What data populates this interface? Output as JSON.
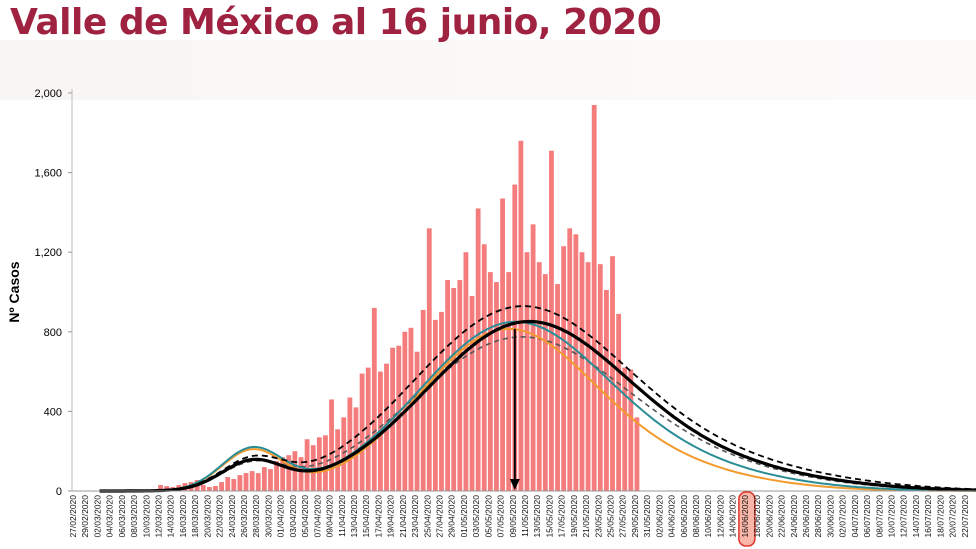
{
  "header": {
    "title": "Valle de México al 16 junio, 2020"
  },
  "chart_data": {
    "type": "bar",
    "title": "Valle de México al 16 junio, 2020",
    "ylabel": "Nº Casos",
    "xlabel": "",
    "ylim": [
      0,
      2000
    ],
    "y_ticks": [
      "0",
      "400",
      "800",
      "1,200",
      "1,600",
      "2,000"
    ],
    "y_tick_values": [
      0,
      400,
      800,
      1200,
      1600,
      2000
    ],
    "x_labels": [
      "27/02/2020",
      "29/02/2020",
      "02/03/2020",
      "04/03/2020",
      "06/03/2020",
      "08/03/2020",
      "10/03/2020",
      "12/03/2020",
      "14/03/2020",
      "16/03/2020",
      "18/03/2020",
      "20/03/2020",
      "22/03/2020",
      "24/03/2020",
      "26/03/2020",
      "28/03/2020",
      "30/03/2020",
      "01/04/2020",
      "03/04/2020",
      "05/04/2020",
      "07/04/2020",
      "09/04/2020",
      "11/04/2020",
      "13/04/2020",
      "15/04/2020",
      "17/04/2020",
      "19/04/2020",
      "21/04/2020",
      "23/04/2020",
      "25/04/2020",
      "27/04/2020",
      "29/04/2020",
      "01/05/2020",
      "03/05/2020",
      "05/05/2020",
      "07/05/2020",
      "09/05/2020",
      "11/05/2020",
      "13/05/2020",
      "15/05/2020",
      "17/05/2020",
      "19/05/2020",
      "21/05/2020",
      "23/05/2020",
      "25/05/2020",
      "27/05/2020",
      "29/05/2020",
      "31/05/2020",
      "02/06/2020",
      "04/06/2020",
      "06/06/2020",
      "08/06/2020",
      "10/06/2020",
      "12/06/2020",
      "14/06/2020",
      "16/06/2020",
      "18/06/2020",
      "20/06/2020",
      "22/06/2020",
      "24/06/2020",
      "26/06/2020",
      "28/06/2020",
      "30/06/2020",
      "02/07/2020",
      "04/07/2020",
      "06/07/2020",
      "08/07/2020",
      "10/07/2020",
      "12/07/2020",
      "14/07/2020",
      "16/07/2020",
      "18/07/2020",
      "20/07/2020",
      "22/07/2020"
    ],
    "highlighted_label": "16/06/2020",
    "bars": {
      "name": "Casos diarios",
      "start_date": "27/02/2020",
      "color": "#f47c7c",
      "values": [
        0,
        0,
        0,
        0,
        0,
        0,
        0,
        0,
        0,
        0,
        0,
        0,
        0,
        0,
        30,
        25,
        20,
        30,
        40,
        45,
        55,
        30,
        20,
        25,
        45,
        70,
        60,
        80,
        90,
        100,
        90,
        120,
        110,
        150,
        170,
        180,
        200,
        170,
        260,
        230,
        270,
        280,
        460,
        310,
        370,
        470,
        420,
        590,
        620,
        920,
        600,
        640,
        720,
        730,
        800,
        820,
        700,
        910,
        1320,
        860,
        900,
        1060,
        1020,
        1060,
        1200,
        980,
        1420,
        1240,
        1100,
        1050,
        1470,
        1100,
        1540,
        1760,
        1200,
        1340,
        1150,
        1090,
        1710,
        1040,
        1230,
        1320,
        1290,
        1200,
        1150,
        1940,
        1140,
        1010,
        1180,
        890,
        620,
        610,
        370
      ]
    },
    "lines": [
      {
        "name": "model-black",
        "color": "#000000",
        "peak_date": "09/05/2020",
        "peak_value": 820
      },
      {
        "name": "model-black-dashed",
        "color": "#000000",
        "style": "dashed",
        "peak_value": 900
      },
      {
        "name": "model-grey-dashed",
        "color": "#555555",
        "style": "dashed",
        "peak_value": 750
      },
      {
        "name": "model-teal",
        "color": "#2a8d95",
        "peak_value": 820
      },
      {
        "name": "model-orange",
        "color": "#f29a2e",
        "peak_value": 790
      }
    ],
    "peak_marker_date": "09/05/2020",
    "grid": false,
    "legend": "none"
  }
}
